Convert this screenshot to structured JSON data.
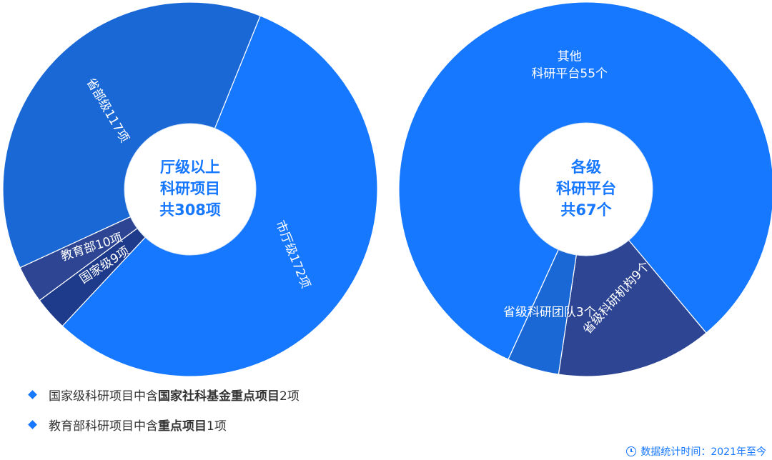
{
  "colors": {
    "accent": "#1677ff",
    "mid": "#1a68d6",
    "dark": "#2d4593",
    "navy": "#1e3a8a",
    "center_bg": "#ffffff",
    "note_text": "#333333"
  },
  "chart_data": [
    {
      "type": "pie",
      "center_lines": [
        "厅级以上",
        "科研项目",
        "共308项"
      ],
      "slices": [
        {
          "label": "市厅级172项",
          "category": "市厅级",
          "value": 172,
          "color": "#1677ff"
        },
        {
          "label": "国家级9项",
          "category": "国家级",
          "value": 9,
          "color": "#1e3a8a"
        },
        {
          "label": "教育部10项",
          "category": "教育部",
          "value": 10,
          "color": "#2d4593"
        },
        {
          "label": "省部级117项",
          "category": "省部级",
          "value": 117,
          "color": "#1a68d6"
        }
      ],
      "total": 308
    },
    {
      "type": "pie",
      "center_lines": [
        "各级",
        "科研平台",
        "共67个"
      ],
      "slices": [
        {
          "label": "其他\n科研平台55个",
          "category": "其他科研平台",
          "value": 55,
          "color": "#1677ff"
        },
        {
          "label": "省级科研机构9个",
          "category": "省级科研机构",
          "value": 9,
          "color": "#2d4593"
        },
        {
          "label": "省级科研团队3个",
          "category": "省级科研团队",
          "value": 3,
          "color": "#1a68d6"
        }
      ],
      "total": 67
    }
  ],
  "notes": [
    {
      "prefix": "国家级科研项目中含",
      "bold": "国家社科基金重点项目",
      "suffix": "2项"
    },
    {
      "prefix": "教育部科研项目中含",
      "bold": "重点项目",
      "suffix": "1项"
    }
  ],
  "footer": {
    "stat_time": "数据统计时间：2021年至今"
  }
}
